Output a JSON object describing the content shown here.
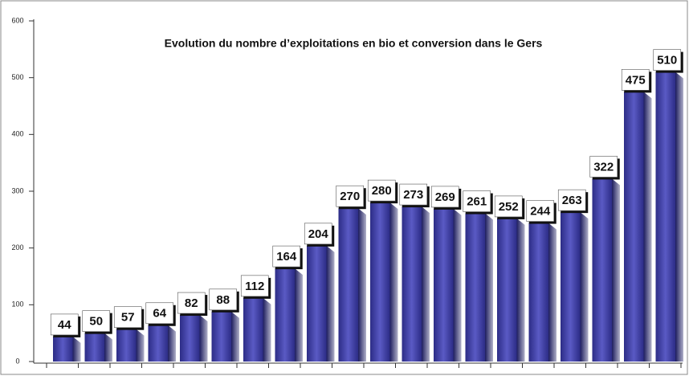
{
  "chart_data": {
    "type": "bar",
    "title": "Evolution du nombre d’exploitations en bio et conversion dans le Gers",
    "values": [
      44,
      50,
      57,
      64,
      82,
      88,
      112,
      164,
      204,
      270,
      280,
      273,
      269,
      261,
      252,
      244,
      263,
      322,
      475,
      510
    ],
    "color": "#3b3b9c",
    "ylim": [
      0,
      600
    ],
    "yticks": [
      0,
      100,
      200,
      300,
      400,
      500,
      600
    ],
    "grid": false
  }
}
